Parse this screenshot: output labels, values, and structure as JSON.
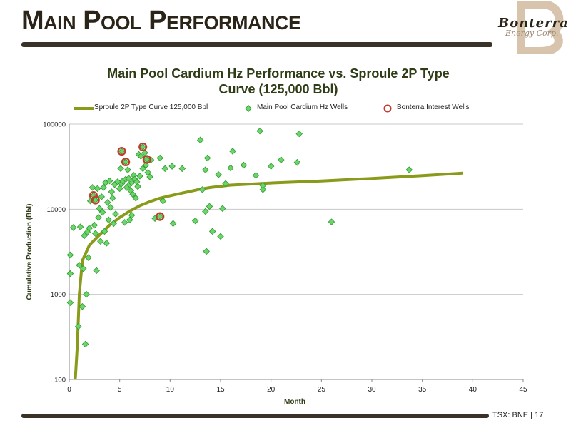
{
  "slide": {
    "title": "Main Pool Performance",
    "footer": "TSX: BNE | 17"
  },
  "logo": {
    "line1": "Bonterra",
    "line2": "Energy Corp."
  },
  "colors": {
    "title_bar": "#3a3128",
    "curve": "#8a9a1b",
    "well_fill": "#6bd46b",
    "well_edge": "#2e9a2e",
    "interest_ring": "#c23b2b",
    "chart_title": "#2e3d16"
  },
  "chart_data": {
    "type": "scatter",
    "title": "Main Pool Cardium Hz Performance vs. Sproule 2P Type Curve (125,000 Bbl)",
    "title_lines": [
      "Main Pool Cardium Hz Performance vs. Sproule 2P Type",
      "Curve (125,000 Bbl)"
    ],
    "xlabel": "Month",
    "ylabel": "Cumulative Production (Bbl)",
    "xlim": [
      0,
      45
    ],
    "ylim": [
      100,
      100000
    ],
    "yscale": "log",
    "x_ticks": [
      0,
      5,
      10,
      15,
      20,
      25,
      30,
      35,
      40,
      45
    ],
    "y_ticks": [
      100,
      1000,
      10000,
      100000
    ],
    "y_tick_labels": [
      "100",
      "1000",
      "10000",
      "100000"
    ],
    "grid": "horizontal",
    "legend_position": "top",
    "series": [
      {
        "name": "Sproule 2P Type Curve 125,000 Bbl",
        "kind": "line",
        "points": [
          [
            0.6,
            100
          ],
          [
            0.8,
            250
          ],
          [
            1.0,
            1000
          ],
          [
            1.3,
            2500
          ],
          [
            2,
            3800
          ],
          [
            3,
            5000
          ],
          [
            4,
            6500
          ],
          [
            5,
            8000
          ],
          [
            6,
            9500
          ],
          [
            7,
            11000
          ],
          [
            8,
            12300
          ],
          [
            9,
            13500
          ],
          [
            10,
            14400
          ],
          [
            11,
            15300
          ],
          [
            12,
            16200
          ],
          [
            13,
            17200
          ],
          [
            14,
            18000
          ],
          [
            16,
            19200
          ],
          [
            20,
            20300
          ],
          [
            25,
            21500
          ],
          [
            30,
            23000
          ],
          [
            35,
            24800
          ],
          [
            39,
            26500
          ]
        ]
      },
      {
        "name": "Main Pool Cardium Hz Wells",
        "kind": "scatter",
        "points": [
          [
            0.1,
            2900
          ],
          [
            0.1,
            1750
          ],
          [
            0.1,
            800
          ],
          [
            0.4,
            6100
          ],
          [
            0.9,
            420
          ],
          [
            1,
            2200
          ],
          [
            1.1,
            6200
          ],
          [
            1.3,
            720
          ],
          [
            1.4,
            2000
          ],
          [
            1.5,
            4900
          ],
          [
            1.6,
            260
          ],
          [
            1.7,
            1000
          ],
          [
            1.8,
            5400
          ],
          [
            1.9,
            2700
          ],
          [
            2.0,
            6000
          ],
          [
            2.1,
            12500
          ],
          [
            2.3,
            18000
          ],
          [
            2.5,
            6500
          ],
          [
            2.6,
            5200
          ],
          [
            2.7,
            1900
          ],
          [
            2.8,
            17500
          ],
          [
            2.9,
            8000
          ],
          [
            3.0,
            10200
          ],
          [
            3.1,
            4200
          ],
          [
            3.2,
            14000
          ],
          [
            3.3,
            9200
          ],
          [
            3.4,
            18000
          ],
          [
            3.5,
            5500
          ],
          [
            3.6,
            20500
          ],
          [
            3.7,
            4000
          ],
          [
            3.8,
            12000
          ],
          [
            3.9,
            7500
          ],
          [
            4.0,
            21500
          ],
          [
            4.1,
            10500
          ],
          [
            4.2,
            16000
          ],
          [
            4.3,
            13500
          ],
          [
            4.4,
            6800
          ],
          [
            4.5,
            19500
          ],
          [
            4.6,
            8800
          ],
          [
            4.8,
            21000
          ],
          [
            5.0,
            17500
          ],
          [
            5.1,
            30000
          ],
          [
            5.2,
            20000
          ],
          [
            5.3,
            21500
          ],
          [
            5.4,
            36500
          ],
          [
            5.5,
            7000
          ],
          [
            5.6,
            22500
          ],
          [
            5.7,
            18000
          ],
          [
            5.8,
            29000
          ],
          [
            5.9,
            23000
          ],
          [
            6.0,
            19500
          ],
          [
            6.1,
            16500
          ],
          [
            6.2,
            20500
          ],
          [
            6.3,
            15000
          ],
          [
            6.4,
            25000
          ],
          [
            6.5,
            22500
          ],
          [
            6.6,
            13500
          ],
          [
            6.7,
            21000
          ],
          [
            6.8,
            18500
          ],
          [
            6.9,
            44000
          ],
          [
            7.0,
            24500
          ],
          [
            7.1,
            42000
          ],
          [
            7.3,
            30000
          ],
          [
            7.5,
            46000
          ],
          [
            7.6,
            33000
          ],
          [
            7.8,
            27000
          ],
          [
            8.0,
            24000
          ],
          [
            8.1,
            38000
          ],
          [
            6.0,
            7500
          ],
          [
            6.2,
            8500
          ],
          [
            8.5,
            7800
          ],
          [
            9.0,
            40000
          ],
          [
            9.3,
            12500
          ],
          [
            9.5,
            30000
          ],
          [
            10.2,
            32000
          ],
          [
            10.3,
            6800
          ],
          [
            11.2,
            30000
          ],
          [
            12.5,
            7300
          ],
          [
            13.0,
            65000
          ],
          [
            13.2,
            17000
          ],
          [
            13.5,
            29000
          ],
          [
            13.7,
            40000
          ],
          [
            13.5,
            9400
          ],
          [
            13.9,
            10800
          ],
          [
            13.6,
            3200
          ],
          [
            14.2,
            5500
          ],
          [
            14.8,
            25500
          ],
          [
            15.0,
            4800
          ],
          [
            15.2,
            10200
          ],
          [
            15.5,
            20000
          ],
          [
            16.0,
            30500
          ],
          [
            16.2,
            48000
          ],
          [
            17.3,
            33000
          ],
          [
            18.5,
            25000
          ],
          [
            18.9,
            83000
          ],
          [
            19.2,
            17000
          ],
          [
            19.2,
            19000
          ],
          [
            20.0,
            32000
          ],
          [
            21.0,
            38000
          ],
          [
            22.6,
            35500
          ],
          [
            22.8,
            77000
          ],
          [
            26.0,
            7100
          ],
          [
            33.7,
            29000
          ]
        ]
      },
      {
        "name": "Bonterra Interest Wells",
        "kind": "scatter",
        "points": [
          [
            2.4,
            14500
          ],
          [
            2.6,
            12800
          ],
          [
            5.2,
            48000
          ],
          [
            5.6,
            36000
          ],
          [
            7.3,
            54000
          ],
          [
            7.7,
            38500
          ],
          [
            9.0,
            8200
          ]
        ]
      }
    ]
  }
}
